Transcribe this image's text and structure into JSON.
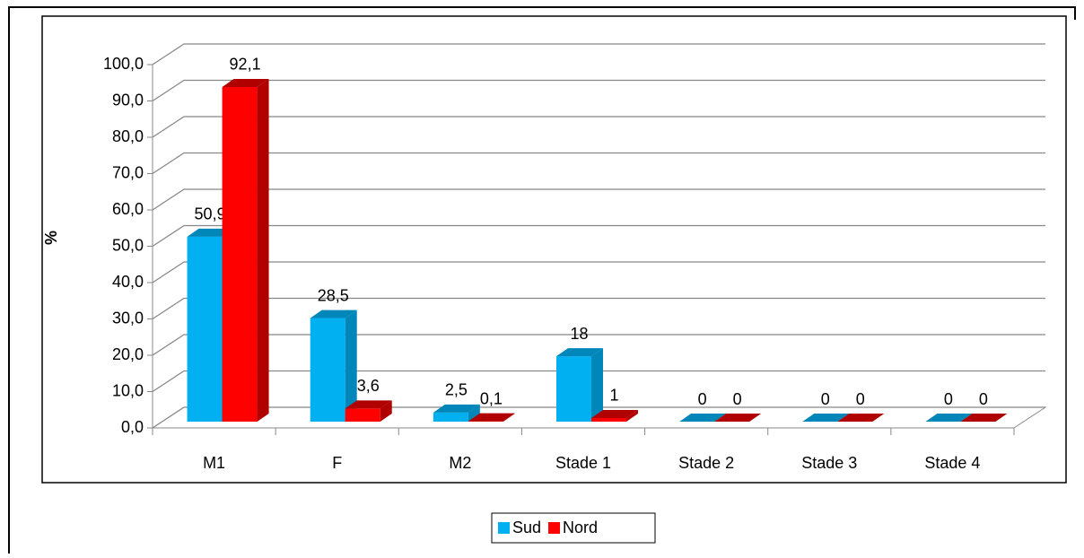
{
  "chart_data": {
    "type": "bar3d",
    "y_label": "%",
    "categories": [
      "M1",
      "F",
      "M2",
      "Stade 1",
      "Stade 2",
      "Stade 3",
      "Stade 4"
    ],
    "series": [
      {
        "name": "Sud",
        "color": "#00b0f0",
        "side_color": "#0086b8",
        "values": [
          50.9,
          28.5,
          2.5,
          18,
          0,
          0,
          0
        ],
        "value_labels": [
          "50,9",
          "28,5",
          "2,5",
          "18",
          "0",
          "0",
          "0"
        ]
      },
      {
        "name": "Nord",
        "color": "#ff0000",
        "side_color": "#b00000",
        "values": [
          92.1,
          3.6,
          0.1,
          1,
          0,
          0,
          0
        ],
        "value_labels": [
          "92,1",
          "3,6",
          "0,1",
          "1",
          "0",
          "0",
          "0"
        ]
      }
    ],
    "ylim": [
      0,
      100
    ],
    "yticks": [
      {
        "value": 0,
        "label": "0,0"
      },
      {
        "value": 10,
        "label": "10,0"
      },
      {
        "value": 20,
        "label": "20,0"
      },
      {
        "value": 30,
        "label": "30,0"
      },
      {
        "value": 40,
        "label": "40,0"
      },
      {
        "value": 50,
        "label": "50,0"
      },
      {
        "value": 60,
        "label": "60,0"
      },
      {
        "value": 70,
        "label": "70,0"
      },
      {
        "value": 80,
        "label": "80,0"
      },
      {
        "value": 90,
        "label": "90,0"
      },
      {
        "value": 100,
        "label": "100,0"
      }
    ],
    "grid": true,
    "legend": "bottom"
  }
}
